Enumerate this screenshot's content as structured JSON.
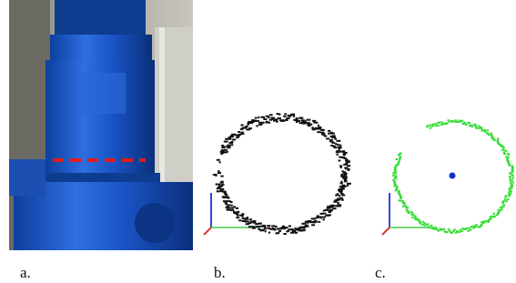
{
  "figure": {
    "panels": [
      {
        "label": "a."
      },
      {
        "label": "b."
      },
      {
        "label": "c."
      }
    ]
  }
}
